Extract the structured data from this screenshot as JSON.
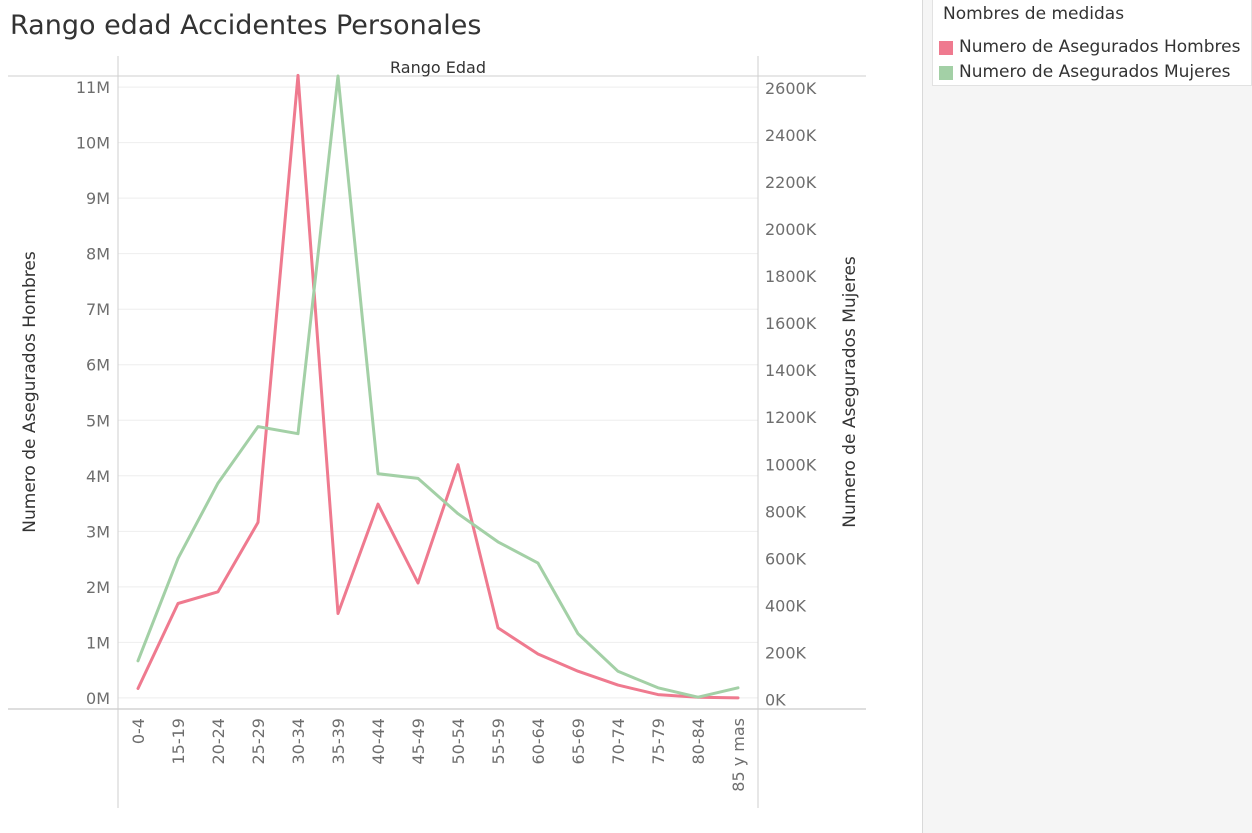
{
  "title": "Rango edad Accidentes Personales",
  "legend": {
    "title": "Nombres de medidas",
    "items": [
      {
        "label": "Numero de Asegurados Hombres",
        "color": "#ef7a8f"
      },
      {
        "label": "Numero de Asegurados Mujeres",
        "color": "#a3d0a6"
      }
    ]
  },
  "chart_data": {
    "type": "line",
    "title": "Rango edad Accidentes Personales",
    "xlabel": "Rango Edad",
    "ylabel": "Numero de Asegurados Hombres",
    "y2label": "Numero de Asegurados Mujeres",
    "categories": [
      "0-4",
      "15-19",
      "20-24",
      "25-29",
      "30-34",
      "35-39",
      "40-44",
      "45-49",
      "50-54",
      "55-59",
      "60-64",
      "65-69",
      "70-74",
      "75-79",
      "80-84",
      "85 y mas"
    ],
    "ylim": [
      -200000,
      11200000
    ],
    "y2lim": [
      -40000,
      2650000
    ],
    "y_ticks": [
      {
        "value": 0,
        "label": "0M"
      },
      {
        "value": 1000000,
        "label": "1M"
      },
      {
        "value": 2000000,
        "label": "2M"
      },
      {
        "value": 3000000,
        "label": "3M"
      },
      {
        "value": 4000000,
        "label": "4M"
      },
      {
        "value": 5000000,
        "label": "5M"
      },
      {
        "value": 6000000,
        "label": "6M"
      },
      {
        "value": 7000000,
        "label": "7M"
      },
      {
        "value": 8000000,
        "label": "8M"
      },
      {
        "value": 9000000,
        "label": "9M"
      },
      {
        "value": 10000000,
        "label": "10M"
      },
      {
        "value": 11000000,
        "label": "11M"
      }
    ],
    "y2_ticks": [
      {
        "value": 0,
        "label": "0K"
      },
      {
        "value": 200000,
        "label": "200K"
      },
      {
        "value": 400000,
        "label": "400K"
      },
      {
        "value": 600000,
        "label": "600K"
      },
      {
        "value": 800000,
        "label": "800K"
      },
      {
        "value": 1000000,
        "label": "1000K"
      },
      {
        "value": 1200000,
        "label": "1200K"
      },
      {
        "value": 1400000,
        "label": "1400K"
      },
      {
        "value": 1600000,
        "label": "1600K"
      },
      {
        "value": 1800000,
        "label": "1800K"
      },
      {
        "value": 2000000,
        "label": "2000K"
      },
      {
        "value": 2200000,
        "label": "2200K"
      },
      {
        "value": 2400000,
        "label": "2400K"
      },
      {
        "value": 2600000,
        "label": "2600K"
      }
    ],
    "grid": true,
    "legend_position": "top-right",
    "series": [
      {
        "name": "Numero de Asegurados Hombres",
        "axis": "left",
        "color": "#ef7a8f",
        "values": [
          170000,
          1700000,
          1910000,
          3160000,
          11210000,
          1520000,
          3490000,
          2070000,
          4200000,
          1260000,
          790000,
          480000,
          230000,
          60000,
          10000,
          0
        ]
      },
      {
        "name": "Numero de Asegurados Mujeres",
        "axis": "right",
        "color": "#a3d0a6",
        "values": [
          165000,
          600000,
          920000,
          1160000,
          1130000,
          2650000,
          960000,
          940000,
          790000,
          670000,
          580000,
          280000,
          120000,
          50000,
          10000,
          50000
        ]
      }
    ]
  }
}
